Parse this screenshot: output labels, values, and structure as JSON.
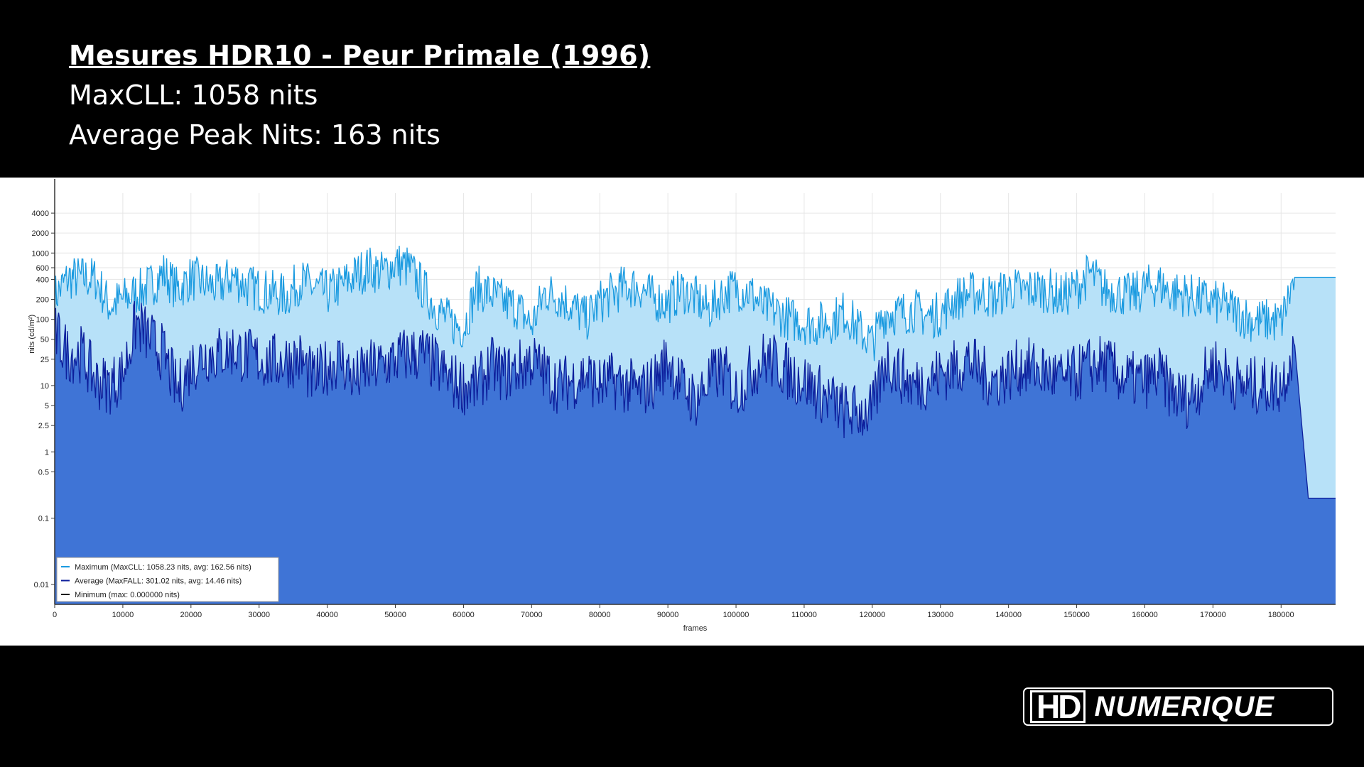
{
  "header": {
    "title": "Mesures HDR10 - Peur Primale (1996)",
    "maxcll": "MaxCLL: 1058 nits",
    "avg_peak": "Average Peak Nits: 163 nits"
  },
  "logo": {
    "hd": "HD",
    "text": "NUMERIQUE"
  },
  "colors": {
    "max_line": "#1a9ae0",
    "max_fill": "#b7e1f8",
    "avg_line": "#0d1f9c",
    "avg_fill": "#3f74d6",
    "min_line": "#111111"
  },
  "chart_data": {
    "type": "area",
    "title": "",
    "xlabel": "frames",
    "ylabel": "nits (cd/m²)",
    "y_scale": "log",
    "xlim": [
      0,
      188000
    ],
    "ylim": [
      0.005,
      8000
    ],
    "grid": true,
    "legend_position": "bottom-left",
    "x_ticks": [
      0,
      10000,
      20000,
      30000,
      40000,
      50000,
      60000,
      70000,
      80000,
      90000,
      100000,
      110000,
      120000,
      130000,
      140000,
      150000,
      160000,
      170000,
      180000
    ],
    "y_ticks": [
      0.01,
      0.1,
      0.5,
      1,
      2.5,
      5,
      10,
      25,
      50,
      100,
      200,
      400,
      600,
      1000,
      2000,
      4000
    ],
    "y_tick_labels": [
      "0.01",
      "0.1",
      "0.5",
      "1",
      "2.5",
      "5",
      "10",
      "25",
      "50",
      "100",
      "200",
      "400",
      "600",
      "1000",
      "2000",
      "4000"
    ],
    "legend": [
      "Maximum (MaxCLL: 1058.23 nits, avg: 162.56 nits)",
      "Average (MaxFALL: 301.02 nits, avg: 14.46 nits)",
      "Minimum (max: 0.000000 nits)"
    ],
    "x": [
      0,
      2000,
      4000,
      6000,
      8000,
      10000,
      12000,
      14000,
      16000,
      18000,
      20000,
      22000,
      24000,
      26000,
      28000,
      30000,
      32000,
      34000,
      36000,
      38000,
      40000,
      42000,
      44000,
      46000,
      48000,
      50000,
      52000,
      54000,
      56000,
      58000,
      60000,
      62000,
      64000,
      66000,
      68000,
      70000,
      72000,
      74000,
      76000,
      78000,
      80000,
      82000,
      84000,
      86000,
      88000,
      90000,
      92000,
      94000,
      96000,
      98000,
      100000,
      102000,
      104000,
      106000,
      108000,
      110000,
      112000,
      114000,
      116000,
      118000,
      120000,
      122000,
      124000,
      126000,
      128000,
      130000,
      132000,
      134000,
      136000,
      138000,
      140000,
      142000,
      144000,
      146000,
      148000,
      150000,
      152000,
      154000,
      156000,
      158000,
      160000,
      162000,
      164000,
      166000,
      168000,
      170000,
      172000,
      174000,
      176000,
      178000,
      180000,
      182000,
      184000,
      186000,
      188000
    ],
    "series": [
      {
        "name": "Maximum (MaxCLL: 1058.23 nits, avg: 162.56 nits)",
        "values": [
          220,
          420,
          420,
          410,
          160,
          200,
          250,
          320,
          500,
          280,
          420,
          350,
          300,
          450,
          320,
          280,
          250,
          220,
          380,
          300,
          250,
          320,
          450,
          600,
          500,
          700,
          600,
          300,
          150,
          90,
          75,
          300,
          240,
          180,
          150,
          80,
          260,
          220,
          160,
          100,
          180,
          250,
          320,
          300,
          200,
          180,
          280,
          210,
          140,
          240,
          300,
          260,
          150,
          130,
          100,
          90,
          85,
          95,
          130,
          70,
          45,
          130,
          120,
          140,
          110,
          120,
          200,
          240,
          250,
          210,
          300,
          260,
          290,
          270,
          220,
          300,
          500,
          280,
          260,
          220,
          300,
          340,
          250,
          240,
          200,
          180,
          160,
          120,
          95,
          95,
          90,
          430,
          430,
          430,
          430
        ]
      },
      {
        "name": "Average (MaxFALL: 301.02 nits, avg: 14.46 nits)",
        "values": [
          60,
          30,
          30,
          12,
          10,
          15,
          90,
          50,
          30,
          8,
          20,
          30,
          30,
          35,
          28,
          25,
          22,
          25,
          25,
          12,
          20,
          25,
          12,
          18,
          20,
          25,
          30,
          30,
          20,
          12,
          10,
          10,
          20,
          15,
          18,
          25,
          15,
          10,
          12,
          15,
          10,
          12,
          10,
          8,
          12,
          25,
          10,
          6,
          12,
          18,
          8,
          15,
          25,
          22,
          15,
          12,
          8,
          6,
          4,
          4,
          4,
          25,
          15,
          10,
          12,
          15,
          18,
          25,
          15,
          12,
          15,
          20,
          18,
          15,
          12,
          15,
          20,
          22,
          15,
          12,
          12,
          15,
          8,
          6,
          10,
          22,
          15,
          10,
          10,
          10,
          10,
          40,
          0.2,
          0.2,
          0.2
        ]
      },
      {
        "name": "Minimum (max: 0.000000 nits)",
        "values": [
          0.005,
          0.005,
          0.005,
          0.005,
          0.005,
          0.005,
          0.005,
          0.005,
          0.005,
          0.005,
          0.005,
          0.005,
          0.005,
          0.005,
          0.005,
          0.005,
          0.005,
          0.005,
          0.005,
          0.005,
          0.005,
          0.005,
          0.005,
          0.005,
          0.005,
          0.005,
          0.005,
          0.005,
          0.005,
          0.005,
          0.005,
          0.005,
          0.005,
          0.005,
          0.005,
          0.005,
          0.005,
          0.005,
          0.005,
          0.005,
          0.005,
          0.005,
          0.005,
          0.005,
          0.005,
          0.005,
          0.005,
          0.005,
          0.005,
          0.005,
          0.005,
          0.005,
          0.005,
          0.005,
          0.005,
          0.005,
          0.005,
          0.005,
          0.005,
          0.005,
          0.005,
          0.005,
          0.005,
          0.005,
          0.005,
          0.005,
          0.005,
          0.005,
          0.005,
          0.005,
          0.005,
          0.005,
          0.005,
          0.005,
          0.005,
          0.005,
          0.005,
          0.005,
          0.005,
          0.005,
          0.005,
          0.005,
          0.005,
          0.005,
          0.005,
          0.005,
          0.005,
          0.005,
          0.005,
          0.005,
          0.005,
          0.005,
          0.005,
          0.005,
          0.005
        ]
      }
    ]
  }
}
